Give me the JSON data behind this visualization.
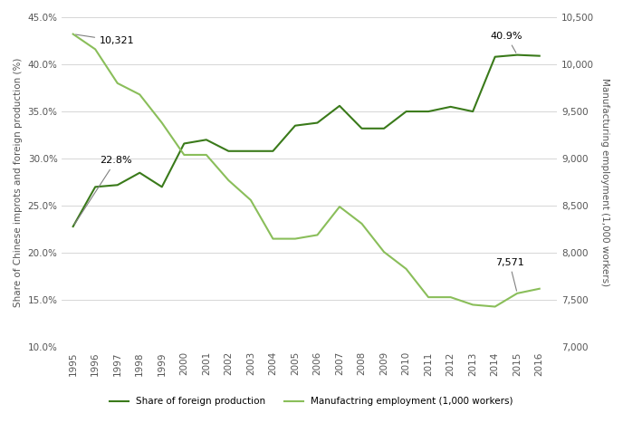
{
  "years": [
    1995,
    1996,
    1997,
    1998,
    1999,
    2000,
    2001,
    2002,
    2003,
    2004,
    2005,
    2006,
    2007,
    2008,
    2009,
    2010,
    2011,
    2012,
    2013,
    2014,
    2015,
    2016
  ],
  "foreign_production": [
    0.228,
    0.27,
    0.272,
    0.285,
    0.27,
    0.316,
    0.32,
    0.308,
    0.308,
    0.308,
    0.335,
    0.338,
    0.356,
    0.332,
    0.332,
    0.35,
    0.35,
    0.355,
    0.35,
    0.408,
    0.41,
    0.409
  ],
  "manufacturing_employment": [
    10321,
    10160,
    9800,
    9680,
    9380,
    9040,
    9040,
    8770,
    8560,
    8150,
    8150,
    8190,
    8490,
    8310,
    8010,
    7830,
    7530,
    7530,
    7450,
    7430,
    7571,
    7620
  ],
  "foreign_production_color": "#3a7a1a",
  "manufacturing_color": "#8abe5a",
  "ylabel_left": "Share of Chinese improts and foreign production (%)",
  "ylabel_right": "Manufacturing employment (1,000 workers)",
  "ylim_left": [
    0.1,
    0.45
  ],
  "ylim_right": [
    7000,
    10500
  ],
  "yticks_left": [
    0.1,
    0.15,
    0.2,
    0.25,
    0.3,
    0.35,
    0.4,
    0.45
  ],
  "yticks_right": [
    7000,
    7500,
    8000,
    8500,
    9000,
    9500,
    10000,
    10500
  ],
  "legend_label_foreign": "Share of foreign production",
  "legend_label_mfg": "Manufactring employment (1,000 workers)",
  "background_color": "#ffffff",
  "grid_color": "#d0d0d0"
}
